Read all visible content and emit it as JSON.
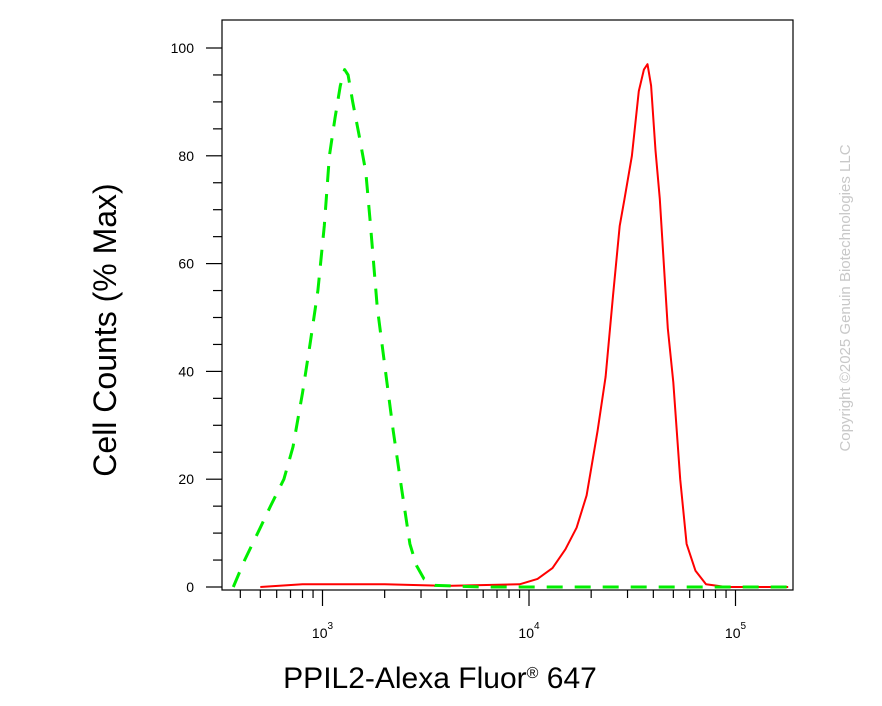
{
  "chart_data": {
    "type": "line",
    "title": "",
    "xlabel": {
      "main": "PPIL2-Alexa Fluor",
      "superscript": "®",
      "suffix": " 647"
    },
    "ylabel": "Cell Counts (% Max)",
    "x_scale": "log",
    "xlim": [
      350,
      180000
    ],
    "ylim": [
      0,
      100
    ],
    "yticks": [
      {
        "value": 0,
        "label": "0"
      },
      {
        "value": 20,
        "label": "20"
      },
      {
        "value": 40,
        "label": "40"
      },
      {
        "value": 60,
        "label": "60"
      },
      {
        "value": 80,
        "label": "80"
      },
      {
        "value": 100,
        "label": "100"
      }
    ],
    "xticks": [
      {
        "value": 1000,
        "base": "10",
        "exp": "3"
      },
      {
        "value": 10000,
        "base": "10",
        "exp": "4"
      },
      {
        "value": 100000,
        "base": "10",
        "exp": "5"
      }
    ],
    "grid": false,
    "legend": "none",
    "series": [
      {
        "color": "#ff0000",
        "style": "solid",
        "points": [
          [
            500,
            0
          ],
          [
            800,
            0.5
          ],
          [
            2000,
            0.5
          ],
          [
            4000,
            0.2
          ],
          [
            9000,
            0.5
          ],
          [
            11000,
            1.5
          ],
          [
            13000,
            3.5
          ],
          [
            15000,
            7
          ],
          [
            17000,
            11
          ],
          [
            19000,
            17
          ],
          [
            20000,
            22
          ],
          [
            21500,
            29
          ],
          [
            23500,
            39
          ],
          [
            25500,
            54
          ],
          [
            27500,
            67
          ],
          [
            29000,
            72
          ],
          [
            31500,
            80
          ],
          [
            34000,
            92
          ],
          [
            36000,
            96
          ],
          [
            37500,
            97
          ],
          [
            39000,
            93
          ],
          [
            41000,
            81
          ],
          [
            43000,
            72
          ],
          [
            47000,
            48
          ],
          [
            50000,
            38
          ],
          [
            54000,
            20
          ],
          [
            58000,
            8
          ],
          [
            64000,
            3
          ],
          [
            72000,
            0.5
          ],
          [
            90000,
            0
          ],
          [
            180000,
            0
          ]
        ]
      },
      {
        "color": "#00ee00",
        "style": "dashed",
        "points": [
          [
            370,
            0
          ],
          [
            420,
            5
          ],
          [
            500,
            11
          ],
          [
            560,
            15
          ],
          [
            650,
            20
          ],
          [
            720,
            26
          ],
          [
            800,
            36
          ],
          [
            870,
            45
          ],
          [
            950,
            55
          ],
          [
            1020,
            67
          ],
          [
            1080,
            80
          ],
          [
            1150,
            87
          ],
          [
            1220,
            93
          ],
          [
            1280,
            96
          ],
          [
            1330,
            95
          ],
          [
            1400,
            90
          ],
          [
            1500,
            84
          ],
          [
            1620,
            77
          ],
          [
            1700,
            68
          ],
          [
            1840,
            52
          ],
          [
            2050,
            38
          ],
          [
            2200,
            29
          ],
          [
            2420,
            18
          ],
          [
            2650,
            8
          ],
          [
            2850,
            4
          ],
          [
            3100,
            1.5
          ],
          [
            3500,
            0.3
          ],
          [
            6000,
            0
          ],
          [
            180000,
            0
          ]
        ]
      }
    ]
  },
  "watermark": "Copyright ©2025 Genuin Biotechnologies LLC"
}
